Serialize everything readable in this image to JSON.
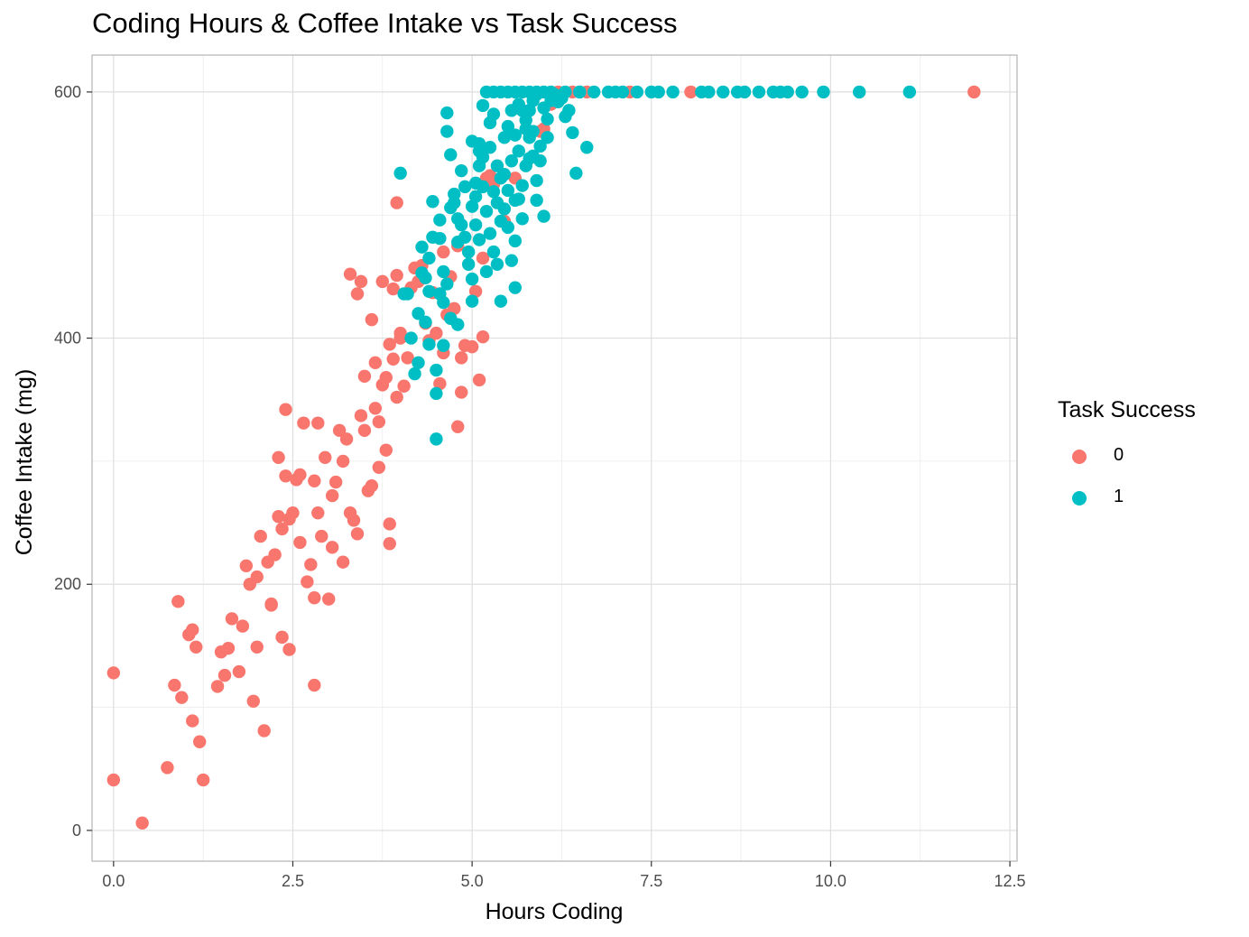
{
  "chart_data": {
    "type": "scatter",
    "title": "Coding Hours & Coffee Intake vs Task Success",
    "xlabel": "Hours Coding",
    "ylabel": "Coffee Intake (mg)",
    "xlim": [
      -0.3,
      12.6
    ],
    "ylim": [
      -25,
      630
    ],
    "x_ticks": [
      "0.0",
      "2.5",
      "5.0",
      "7.5",
      "10.0",
      "12.5"
    ],
    "y_ticks": [
      "0",
      "200",
      "400",
      "600"
    ],
    "grid": true,
    "legend": {
      "title": "Task Success",
      "position": "right"
    },
    "series": [
      {
        "name": "0",
        "color": "#F8766D",
        "points": [
          [
            0.0,
            128
          ],
          [
            0.0,
            41
          ],
          [
            0.4,
            6
          ],
          [
            0.75,
            51
          ],
          [
            0.85,
            118
          ],
          [
            0.9,
            186
          ],
          [
            0.95,
            108
          ],
          [
            1.05,
            159
          ],
          [
            1.1,
            163
          ],
          [
            1.1,
            89
          ],
          [
            1.15,
            149
          ],
          [
            1.2,
            72
          ],
          [
            1.25,
            41
          ],
          [
            1.45,
            117
          ],
          [
            1.5,
            145
          ],
          [
            1.55,
            126
          ],
          [
            1.6,
            148
          ],
          [
            1.65,
            172
          ],
          [
            1.75,
            129
          ],
          [
            1.8,
            166
          ],
          [
            1.85,
            215
          ],
          [
            1.9,
            200
          ],
          [
            1.95,
            105
          ],
          [
            2.0,
            206
          ],
          [
            2.0,
            149
          ],
          [
            2.05,
            239
          ],
          [
            2.1,
            81
          ],
          [
            2.15,
            218
          ],
          [
            2.2,
            183
          ],
          [
            2.25,
            224
          ],
          [
            2.2,
            184
          ],
          [
            2.3,
            303
          ],
          [
            2.3,
            255
          ],
          [
            2.35,
            245
          ],
          [
            2.35,
            157
          ],
          [
            2.4,
            342
          ],
          [
            2.4,
            288
          ],
          [
            2.45,
            253
          ],
          [
            2.45,
            147
          ],
          [
            2.5,
            258
          ],
          [
            2.55,
            285
          ],
          [
            2.6,
            234
          ],
          [
            2.6,
            289
          ],
          [
            2.65,
            331
          ],
          [
            2.7,
            202
          ],
          [
            2.75,
            216
          ],
          [
            2.8,
            118
          ],
          [
            2.8,
            189
          ],
          [
            2.8,
            284
          ],
          [
            2.85,
            331
          ],
          [
            2.85,
            258
          ],
          [
            2.9,
            239
          ],
          [
            2.95,
            303
          ],
          [
            3.05,
            272
          ],
          [
            3.0,
            188
          ],
          [
            3.05,
            230
          ],
          [
            3.1,
            283
          ],
          [
            3.15,
            325
          ],
          [
            3.2,
            218
          ],
          [
            3.2,
            300
          ],
          [
            3.25,
            318
          ],
          [
            3.3,
            258
          ],
          [
            3.35,
            252
          ],
          [
            3.4,
            241
          ],
          [
            3.45,
            337
          ],
          [
            3.5,
            325
          ],
          [
            3.55,
            276
          ],
          [
            3.6,
            280
          ],
          [
            3.65,
            343
          ],
          [
            3.7,
            295
          ],
          [
            3.75,
            362
          ],
          [
            3.8,
            309
          ],
          [
            3.85,
            233
          ],
          [
            3.85,
            249
          ],
          [
            3.9,
            383
          ],
          [
            3.95,
            352
          ],
          [
            4.0,
            404
          ],
          [
            4.05,
            361
          ],
          [
            4.1,
            384
          ],
          [
            4.15,
            441
          ],
          [
            4.2,
            457
          ],
          [
            4.25,
            446
          ],
          [
            4.3,
            459
          ],
          [
            4.35,
            412
          ],
          [
            4.4,
            398
          ],
          [
            4.45,
            437
          ],
          [
            4.5,
            404
          ],
          [
            4.55,
            363
          ],
          [
            4.6,
            388
          ],
          [
            4.65,
            419
          ],
          [
            4.7,
            450
          ],
          [
            4.75,
            424
          ],
          [
            4.8,
            328
          ],
          [
            4.85,
            356
          ],
          [
            4.9,
            394
          ],
          [
            5.0,
            393
          ],
          [
            5.05,
            438
          ],
          [
            5.1,
            366
          ],
          [
            5.15,
            401
          ],
          [
            3.3,
            452
          ],
          [
            3.45,
            446
          ],
          [
            3.4,
            436
          ],
          [
            3.6,
            415
          ],
          [
            3.75,
            446
          ],
          [
            3.9,
            440
          ],
          [
            3.95,
            451
          ],
          [
            3.85,
            395
          ],
          [
            4.0,
            400
          ],
          [
            3.5,
            369
          ],
          [
            3.65,
            380
          ],
          [
            3.7,
            332
          ],
          [
            3.8,
            368
          ],
          [
            3.95,
            510
          ],
          [
            4.6,
            470
          ],
          [
            4.8,
            475
          ],
          [
            4.85,
            384
          ],
          [
            5.15,
            465
          ],
          [
            5.25,
            532
          ],
          [
            5.2,
            530
          ],
          [
            5.3,
            525
          ],
          [
            5.45,
            495
          ],
          [
            5.6,
            530
          ],
          [
            5.95,
            568
          ],
          [
            6.0,
            570
          ],
          [
            6.1,
            590
          ],
          [
            6.2,
            600
          ],
          [
            6.4,
            600
          ],
          [
            6.6,
            600
          ],
          [
            7.2,
            600
          ],
          [
            8.05,
            600
          ],
          [
            12.0,
            600
          ]
        ]
      },
      {
        "name": "1",
        "color": "#00BFC4",
        "points": [
          [
            4.0,
            534
          ],
          [
            4.05,
            436
          ],
          [
            4.1,
            436
          ],
          [
            4.15,
            400
          ],
          [
            4.2,
            371
          ],
          [
            4.25,
            380
          ],
          [
            4.3,
            474
          ],
          [
            4.3,
            453
          ],
          [
            4.35,
            413
          ],
          [
            4.4,
            395
          ],
          [
            4.4,
            438
          ],
          [
            4.45,
            482
          ],
          [
            4.45,
            511
          ],
          [
            4.5,
            374
          ],
          [
            4.5,
            355
          ],
          [
            4.5,
            318
          ],
          [
            4.55,
            496
          ],
          [
            4.55,
            481
          ],
          [
            4.6,
            429
          ],
          [
            4.6,
            394
          ],
          [
            4.65,
            568
          ],
          [
            4.65,
            583
          ],
          [
            4.7,
            549
          ],
          [
            4.7,
            506
          ],
          [
            4.75,
            510
          ],
          [
            4.8,
            497
          ],
          [
            4.8,
            411
          ],
          [
            4.85,
            536
          ],
          [
            4.9,
            482
          ],
          [
            4.95,
            460
          ],
          [
            5.0,
            430
          ],
          [
            5.0,
            448
          ],
          [
            5.05,
            515
          ],
          [
            5.1,
            540
          ],
          [
            5.1,
            558
          ],
          [
            5.15,
            589
          ],
          [
            5.2,
            503
          ],
          [
            5.25,
            575
          ],
          [
            5.3,
            519
          ],
          [
            5.35,
            460
          ],
          [
            5.4,
            430
          ],
          [
            5.45,
            505
          ],
          [
            5.5,
            490
          ],
          [
            5.55,
            463
          ],
          [
            5.6,
            479
          ],
          [
            5.65,
            513
          ],
          [
            5.7,
            524
          ],
          [
            5.75,
            540
          ],
          [
            5.8,
            563
          ],
          [
            5.85,
            548
          ],
          [
            5.9,
            512
          ],
          [
            5.95,
            544
          ],
          [
            6.0,
            499
          ],
          [
            6.05,
            578
          ],
          [
            6.1,
            593
          ],
          [
            6.2,
            592
          ],
          [
            6.3,
            580
          ],
          [
            6.4,
            567
          ],
          [
            6.45,
            534
          ],
          [
            6.5,
            600
          ],
          [
            6.6,
            555
          ],
          [
            5.2,
            600
          ],
          [
            5.3,
            600
          ],
          [
            5.4,
            600
          ],
          [
            5.5,
            600
          ],
          [
            5.6,
            600
          ],
          [
            5.7,
            600
          ],
          [
            5.8,
            600
          ],
          [
            5.9,
            600
          ],
          [
            6.0,
            600
          ],
          [
            6.1,
            600
          ],
          [
            6.3,
            600
          ],
          [
            6.5,
            600
          ],
          [
            6.7,
            600
          ],
          [
            6.9,
            600
          ],
          [
            7.0,
            600
          ],
          [
            7.1,
            600
          ],
          [
            7.3,
            600
          ],
          [
            7.5,
            600
          ],
          [
            7.6,
            600
          ],
          [
            7.8,
            600
          ],
          [
            8.2,
            600
          ],
          [
            8.3,
            600
          ],
          [
            8.5,
            600
          ],
          [
            8.7,
            600
          ],
          [
            8.8,
            600
          ],
          [
            9.0,
            600
          ],
          [
            9.2,
            600
          ],
          [
            9.3,
            600
          ],
          [
            9.4,
            600
          ],
          [
            9.6,
            600
          ],
          [
            9.9,
            600
          ],
          [
            10.4,
            600
          ],
          [
            11.1,
            600
          ],
          [
            4.4,
            465
          ],
          [
            4.6,
            454
          ],
          [
            4.75,
            517
          ],
          [
            4.85,
            492
          ],
          [
            4.9,
            523
          ],
          [
            5.0,
            507
          ],
          [
            5.05,
            526
          ],
          [
            5.15,
            547
          ],
          [
            5.25,
            555
          ],
          [
            5.35,
            540
          ],
          [
            5.45,
            563
          ],
          [
            5.55,
            585
          ],
          [
            5.65,
            590
          ],
          [
            5.75,
            570
          ],
          [
            5.85,
            593
          ],
          [
            5.95,
            556
          ],
          [
            4.25,
            420
          ],
          [
            4.35,
            449
          ],
          [
            4.55,
            436
          ],
          [
            4.65,
            444
          ],
          [
            4.95,
            470
          ],
          [
            5.1,
            480
          ],
          [
            5.2,
            454
          ],
          [
            5.3,
            470
          ],
          [
            5.4,
            495
          ],
          [
            5.5,
            520
          ],
          [
            5.6,
            512
          ],
          [
            5.7,
            497
          ],
          [
            5.8,
            546
          ],
          [
            5.9,
            528
          ],
          [
            6.0,
            587
          ],
          [
            4.7,
            416
          ],
          [
            4.8,
            478
          ],
          [
            5.05,
            492
          ],
          [
            5.15,
            523
          ],
          [
            5.25,
            485
          ],
          [
            5.35,
            510
          ],
          [
            5.45,
            533
          ],
          [
            5.55,
            544
          ],
          [
            5.65,
            552
          ],
          [
            5.75,
            577
          ],
          [
            5.85,
            568
          ],
          [
            6.15,
            598
          ],
          [
            6.25,
            595
          ],
          [
            6.35,
            585
          ],
          [
            5.6,
            441
          ],
          [
            5.0,
            560
          ],
          [
            5.1,
            552
          ],
          [
            5.3,
            582
          ],
          [
            5.5,
            572
          ],
          [
            5.7,
            585
          ],
          [
            5.9,
            598
          ],
          [
            6.05,
            563
          ],
          [
            5.4,
            530
          ],
          [
            5.6,
            565
          ],
          [
            5.8,
            585
          ]
        ]
      }
    ]
  }
}
